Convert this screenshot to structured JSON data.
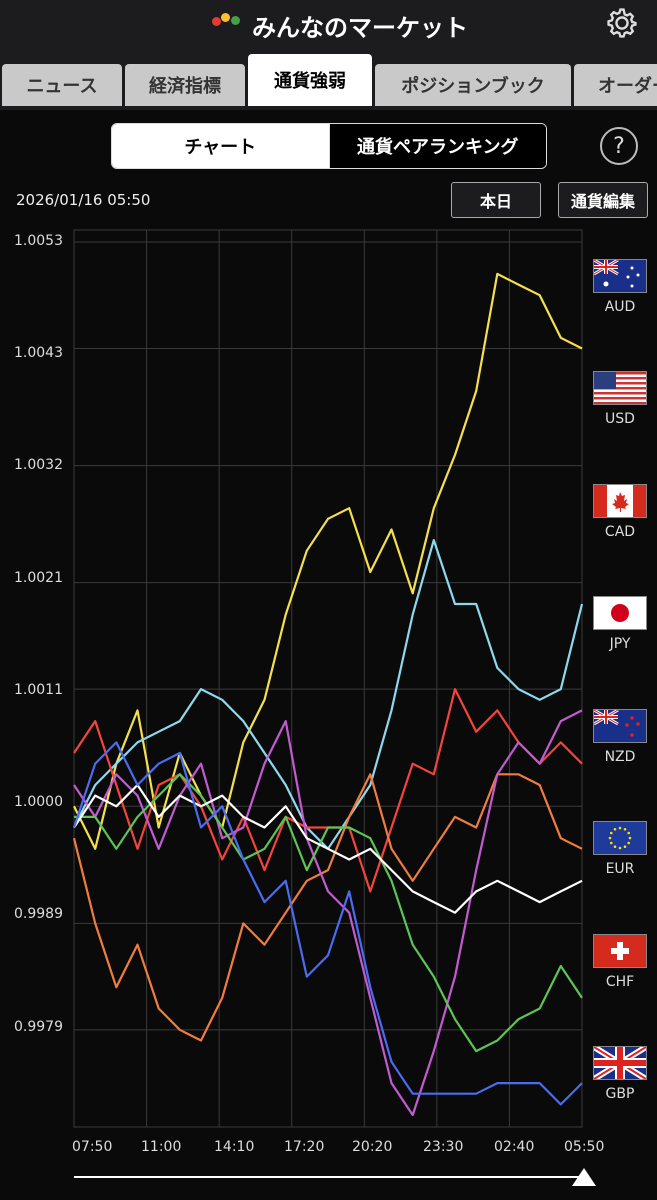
{
  "header": {
    "title": "みんなのマーケット"
  },
  "tabs": [
    {
      "label": "ニュース",
      "active": false
    },
    {
      "label": "経済指標",
      "active": false
    },
    {
      "label": "通貨強弱",
      "active": true
    },
    {
      "label": "ポジションブック",
      "active": false
    },
    {
      "label": "オーダー",
      "active": false
    }
  ],
  "segment": {
    "chart": "チャート",
    "ranking": "通貨ペアランキング"
  },
  "help": "?",
  "datetime": "2026/01/16 05:50",
  "buttons": {
    "today": "本日",
    "edit": "通貨編集"
  },
  "colors": {
    "background": "#0a0a0a",
    "grid": "#3a3a3a"
  },
  "chart_data": {
    "type": "line",
    "y_ticks": [
      "1.0053",
      "1.0043",
      "1.0032",
      "1.0021",
      "1.0011",
      "1.0000",
      "0.9989",
      "0.9979"
    ],
    "x_ticks": [
      "07:50",
      "11:00",
      "14:10",
      "17:20",
      "20:20",
      "23:30",
      "02:40",
      "05:50"
    ],
    "ylim": [
      0.9971,
      1.0053
    ],
    "grid": true,
    "legend_position": "right",
    "series": [
      {
        "name": "AUD",
        "color": "#f4e04d",
        "values": [
          1.0,
          0.9996,
          1.0004,
          1.0009,
          0.9998,
          1.0005,
          1.0001,
          0.9998,
          1.0006,
          1.001,
          1.0018,
          1.0024,
          1.0027,
          1.0028,
          1.0022,
          1.0026,
          1.002,
          1.0028,
          1.0033,
          1.0039,
          1.005,
          1.0049,
          1.0048,
          1.0044,
          1.0043
        ]
      },
      {
        "name": "USD",
        "color": "#8ed8ee",
        "values": [
          0.9998,
          1.0002,
          1.0004,
          1.0006,
          1.0007,
          1.0008,
          1.0011,
          1.001,
          1.0008,
          1.0005,
          1.0002,
          0.9998,
          0.9996,
          0.9999,
          1.0002,
          1.0009,
          1.0018,
          1.0025,
          1.0019,
          1.0019,
          1.0013,
          1.0011,
          1.001,
          1.0011,
          1.0019
        ]
      },
      {
        "name": "CAD",
        "color": "#f1453d",
        "values": [
          1.0005,
          1.0008,
          1.0002,
          0.9996,
          1.0002,
          1.0003,
          1.0,
          0.9995,
          0.9999,
          0.9994,
          0.9999,
          0.9998,
          0.9998,
          0.9998,
          0.9992,
          0.9998,
          1.0004,
          1.0003,
          1.0011,
          1.0007,
          1.0009,
          1.0006,
          1.0004,
          1.0006,
          1.0004
        ]
      },
      {
        "name": "JPY",
        "color": "#f07d3c",
        "values": [
          0.9997,
          0.9989,
          0.9983,
          0.9987,
          0.9981,
          0.9979,
          0.9978,
          0.9982,
          0.9989,
          0.9987,
          0.999,
          0.9993,
          0.9994,
          0.9999,
          1.0003,
          0.9996,
          0.9993,
          0.9996,
          0.9999,
          0.9998,
          1.0003,
          1.0003,
          1.0002,
          0.9997,
          0.9996
        ]
      },
      {
        "name": "NZD",
        "color": "#c35ad1",
        "values": [
          1.0002,
          0.9999,
          1.0003,
          1.0001,
          0.9996,
          1.0001,
          1.0004,
          0.9997,
          0.9998,
          1.0004,
          1.0008,
          0.9997,
          0.9992,
          0.999,
          0.9982,
          0.9974,
          0.9971,
          0.9977,
          0.9984,
          0.9994,
          1.0003,
          1.0006,
          1.0004,
          1.0008,
          1.0009
        ]
      },
      {
        "name": "EUR",
        "color": "#5dc456",
        "values": [
          0.9999,
          0.9999,
          0.9996,
          0.9999,
          1.0001,
          1.0003,
          1.0001,
          0.9998,
          0.9995,
          0.9996,
          0.9999,
          0.9994,
          0.9998,
          0.9998,
          0.9997,
          0.9993,
          0.9987,
          0.9984,
          0.998,
          0.9977,
          0.9978,
          0.998,
          0.9981,
          0.9985,
          0.9982
        ]
      },
      {
        "name": "CHF",
        "color": "#ffffff",
        "values": [
          0.9998,
          1.0001,
          1.0,
          1.0002,
          0.9999,
          1.0001,
          1.0,
          1.0001,
          0.9999,
          0.9998,
          1.0,
          0.9997,
          0.9996,
          0.9995,
          0.9996,
          0.9994,
          0.9992,
          0.9991,
          0.999,
          0.9992,
          0.9993,
          0.9992,
          0.9991,
          0.9992,
          0.9993
        ]
      },
      {
        "name": "GBP",
        "color": "#4a6cf0",
        "values": [
          0.9998,
          1.0004,
          1.0006,
          1.0002,
          1.0004,
          1.0005,
          0.9998,
          1.0,
          0.9995,
          0.9991,
          0.9993,
          0.9984,
          0.9986,
          0.9992,
          0.9983,
          0.9976,
          0.9973,
          0.9973,
          0.9973,
          0.9973,
          0.9974,
          0.9974,
          0.9974,
          0.9972,
          0.9974
        ]
      }
    ]
  }
}
